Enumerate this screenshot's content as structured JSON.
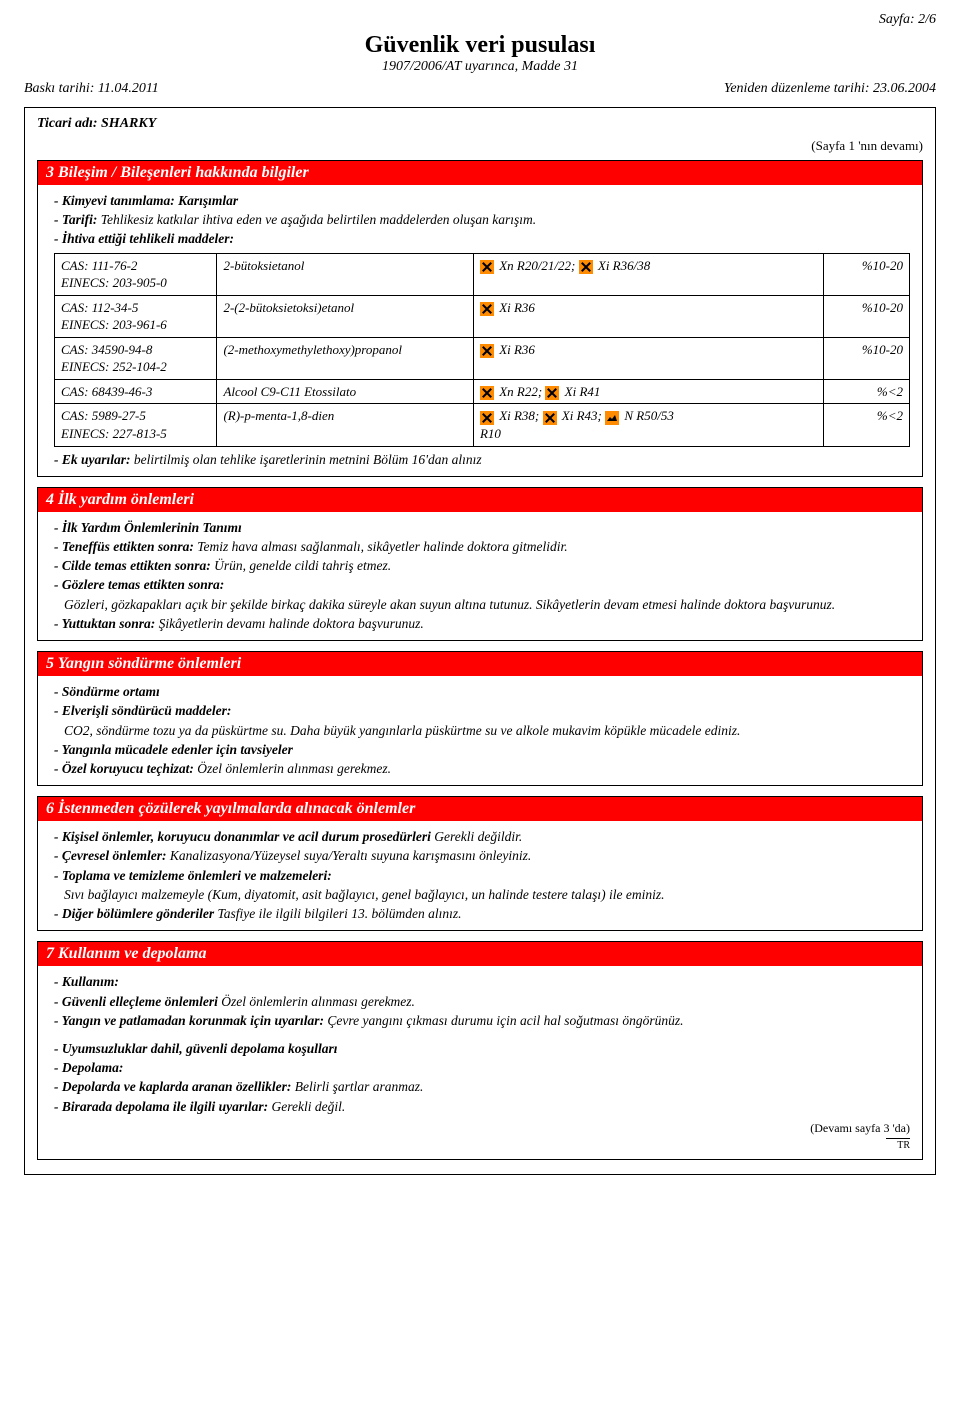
{
  "page_num": "Sayfa: 2/6",
  "header": {
    "title": "Güvenlik veri pusulası",
    "subtitle": "1907/2006/AT uyarınca, Madde 31"
  },
  "print_date": "Baskı tarihi: 11.04.2011",
  "revision_date": "Yeniden düzenleme tarihi: 23.06.2004",
  "trade_name": "Ticari adı: SHARKY",
  "cont_from": "(Sayfa 1 'nın devamı)",
  "sec3": {
    "title": "3 Bileşim / Bileşenleri hakkında bilgiler",
    "chem_label": "- Kimyevi tanımlama: Karışımlar",
    "desc_label": "- Tarifi:",
    "desc_text": " Tehlikesiz katkılar ihtiva eden ve aşağıda belirtilen maddelerden oluşan karışım.",
    "haz_label": "- İhtiva ettiği tehlikeli maddeler:",
    "rows": [
      {
        "cas": "CAS: 111-76-2\nEINECS: 203-905-0",
        "name": "2-bütoksietanol",
        "symbols": [
          {
            "icon": "x",
            "text": " Xn R20/21/22; "
          },
          {
            "icon": "x",
            "text": " Xi R36/38"
          }
        ],
        "pct": "%10-20"
      },
      {
        "cas": "CAS: 112-34-5\nEINECS: 203-961-6",
        "name": "2-(2-bütoksietoksi)etanol",
        "symbols": [
          {
            "icon": "x",
            "text": " Xi R36"
          }
        ],
        "pct": "%10-20"
      },
      {
        "cas": "CAS: 34590-94-8\nEINECS: 252-104-2",
        "name": "(2-methoxymethylethoxy)propanol",
        "symbols": [
          {
            "icon": "x",
            "text": " Xi R36"
          }
        ],
        "pct": "%10-20"
      },
      {
        "cas": "CAS: 68439-46-3",
        "name": "Alcool C9-C11 Etossilato",
        "symbols": [
          {
            "icon": "x",
            "text": " Xn R22; "
          },
          {
            "icon": "x",
            "text": " Xi R41"
          }
        ],
        "pct": "%<2"
      },
      {
        "cas": "CAS: 5989-27-5\nEINECS: 227-813-5",
        "name": "(R)-p-menta-1,8-dien",
        "symbols": [
          {
            "icon": "x",
            "text": " Xi R38; "
          },
          {
            "icon": "x",
            "text": " Xi R43; "
          },
          {
            "icon": "env",
            "text": " N R50/53"
          }
        ],
        "extra": "R10",
        "pct": "%<2"
      }
    ],
    "note_label": "- Ek uyarılar:",
    "note_text": " belirtilmiş olan tehlike işaretlerinin metnini Bölüm 16'dan alınız"
  },
  "sec4": {
    "title": "4 İlk yardım önlemleri",
    "l1": "- İlk Yardım Önlemlerinin Tanımı",
    "l2a": "- Teneffüs ettikten sonra:",
    "l2b": " Temiz hava alması sağlanmalı, sikâyetler halinde doktora gitmelidir.",
    "l3a": "- Cilde temas ettikten sonra:",
    "l3b": " Ürün, genelde cildi tahriş etmez.",
    "l4": "- Gözlere temas ettikten sonra:",
    "l5": "Gözleri, gözkapakları açık bir şekilde birkaç dakika süreyle akan suyun altına tutunuz. Sikâyetlerin devam etmesi halinde doktora başvurunuz.",
    "l6a": "- Yuttuktan sonra:",
    "l6b": " Şikâyetlerin devamı halinde doktora başvurunuz."
  },
  "sec5": {
    "title": "5 Yangın söndürme önlemleri",
    "l1": "- Söndürme ortamı",
    "l2": "- Elverişli söndürücü maddeler:",
    "l3": "CO2, söndürme tozu ya da püskürtme su. Daha büyük yangınlarla püskürtme su ve alkole mukavim köpükle mücadele ediniz.",
    "l4": "- Yangınla mücadele edenler için tavsiyeler",
    "l5a": "- Özel koruyucu teçhizat:",
    "l5b": " Özel önlemlerin alınması gerekmez."
  },
  "sec6": {
    "title": "6 İstenmeden çözülerek yayılmalarda alınacak önlemler",
    "l1a": "- Kişisel önlemler, koruyucu donanımlar ve acil durum prosedürleri",
    "l1b": " Gerekli değildir.",
    "l2a": "- Çevresel önlemler:",
    "l2b": " Kanalizasyona/Yüzeysel suya/Yeraltı suyuna karışmasını önleyiniz.",
    "l3": "- Toplama ve temizleme önlemleri ve malzemeleri:",
    "l4": "Sıvı bağlayıcı malzemeyle (Kum, diyatomit, asit bağlayıcı, genel bağlayıcı, un halinde testere talaşı) ile eminiz.",
    "l5a": "- Diğer bölümlere gönderiler",
    "l5b": " Tasfiye ile ilgili bilgileri 13. bölümden alınız."
  },
  "sec7": {
    "title": "7 Kullanım ve depolama",
    "l1": "- Kullanım:",
    "l2a": "- Güvenli elleçleme önlemleri",
    "l2b": " Özel önlemlerin alınması gerekmez.",
    "l3a": "- Yangın ve patlamadan korunmak için uyarılar:",
    "l3b": " Çevre yangını çıkması durumu için acil hal soğutması öngörünüz.",
    "l4": "- Uyumsuzluklar dahil, güvenli depolama koşulları",
    "l5": "- Depolama:",
    "l6a": "- Depolarda ve kaplarda aranan özellikler:",
    "l6b": " Belirli şartlar aranmaz.",
    "l7a": "- Birarada depolama ile ilgili uyarılar:",
    "l7b": " Gerekli değil."
  },
  "cont_next": "(Devamı sayfa 3 'da)",
  "tr": "TR"
}
